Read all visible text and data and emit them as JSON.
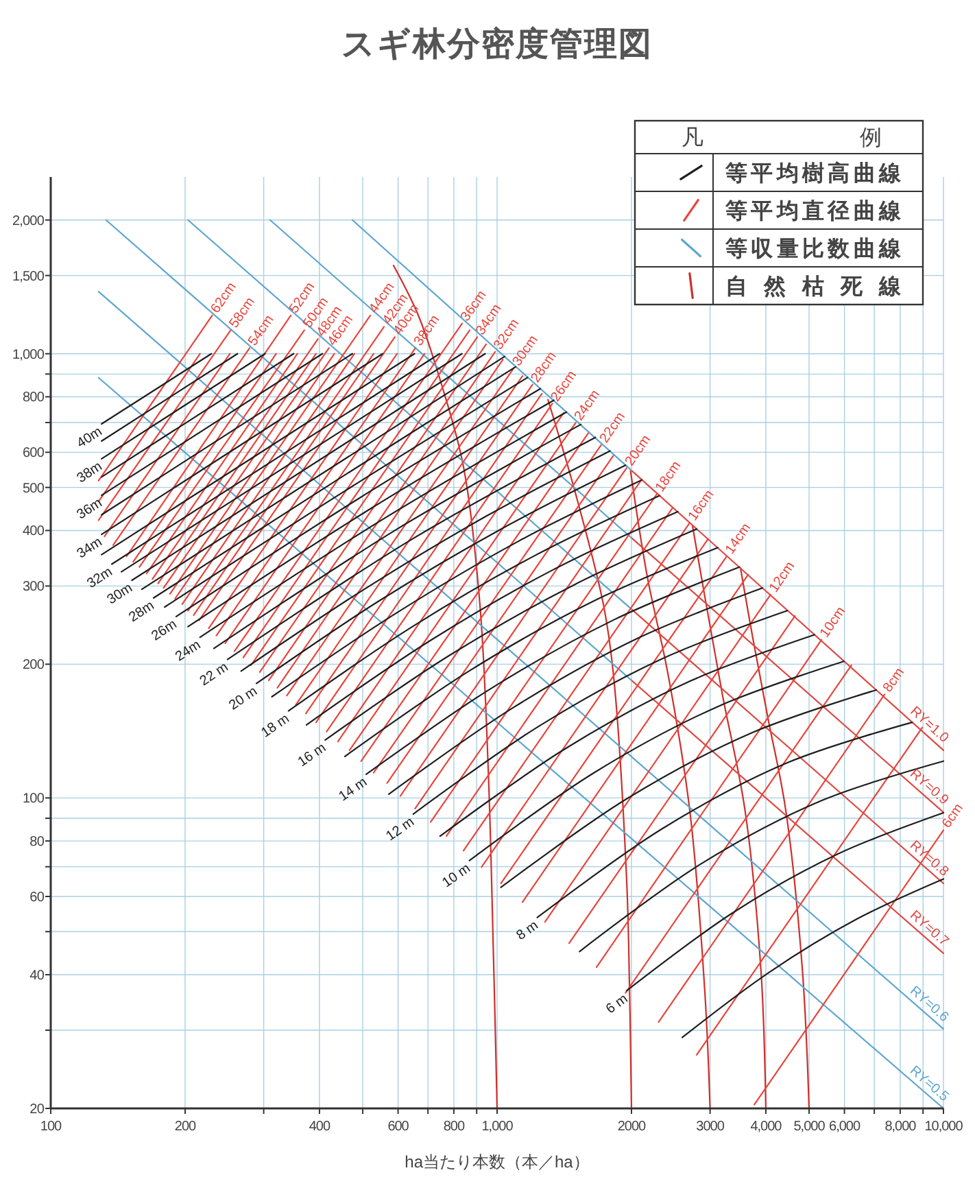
{
  "chart_data": {
    "type": "line",
    "title": "スギ林分密度管理図",
    "xlabel": "ha当たり本数（本／ha）",
    "legend_title": "凡例",
    "legend": "top right",
    "log": "xy",
    "grid": true,
    "xlim": [
      100,
      10000
    ],
    "ylim": [
      20,
      2500
    ],
    "xticks": [
      100,
      200,
      {
        "value": 300,
        "label": null
      },
      400,
      {
        "value": 500,
        "label": null
      },
      600,
      {
        "value": 700,
        "label": null
      },
      800,
      {
        "value": 900,
        "label": null
      },
      {
        "value": 1000,
        "label": "1,000"
      },
      2000,
      3000,
      {
        "value": 4000,
        "label": "4,000"
      },
      {
        "value": 5000,
        "label": "5,000"
      },
      {
        "value": 6000,
        "label": "6,000"
      },
      {
        "value": 7000,
        "label": null
      },
      {
        "value": 8000,
        "label": "8,000"
      },
      {
        "value": 9000,
        "label": null
      },
      {
        "value": 10000,
        "label": "10,000"
      }
    ],
    "yticks": [
      20,
      {
        "value": 30,
        "label": null
      },
      40,
      {
        "value": 50,
        "label": null
      },
      60,
      {
        "value": 70,
        "label": null
      },
      80,
      {
        "value": 90,
        "label": null
      },
      100,
      200,
      300,
      400,
      500,
      600,
      {
        "value": 700,
        "label": null
      },
      800,
      {
        "value": 900,
        "label": null
      },
      {
        "value": 1000,
        "label": "1,000"
      },
      {
        "value": 1500,
        "label": "1,500"
      },
      {
        "value": 2000,
        "label": "2,000"
      }
    ],
    "series": [
      {
        "name": "等平均樹高曲線",
        "color": "#1e1e1e",
        "x": [
          130,
          229
        ],
        "values": [
          695,
          1000
        ]
      },
      {
        "color": "#1e1e1e",
        "x": [
          130,
          262
        ],
        "values": [
          636,
          1000
        ]
      },
      {
        "color": "#1e1e1e",
        "x": [
          130,
          302
        ],
        "values": [
          580,
          1000
        ]
      },
      {
        "color": "#1e1e1e",
        "x": [
          130,
          350
        ],
        "values": [
          528,
          1000
        ]
      },
      {
        "color": "#1e1e1e",
        "x": [
          130,
          406
        ],
        "values": [
          480,
          1000
        ]
      },
      {
        "color": "#1e1e1e",
        "x": [
          130,
          474
        ],
        "values": [
          434,
          1000
        ]
      },
      {
        "color": "#1e1e1e",
        "x": [
          130,
          554
        ],
        "values": [
          392,
          1000
        ]
      },
      {
        "color": "#1e1e1e",
        "x": [
          130,
          653
        ],
        "values": [
          353,
          1000
        ]
      },
      {
        "color": "#1e1e1e",
        "x": [
          137,
          743
        ],
        "values": [
          336,
          1000
        ]
      },
      {
        "color": "#1e1e1e",
        "x": [
          144,
          834
        ],
        "values": [
          323,
          1000
        ]
      },
      {
        "color": "#1e1e1e",
        "x": [
          152,
          940
        ],
        "values": [
          309,
          1000
        ]
      },
      {
        "color": "#1e1e1e",
        "x": [
          160,
          1040
        ],
        "values": [
          295,
          986
        ]
      },
      {
        "color": "#1e1e1e",
        "x": [
          170,
          433,
          1100
        ],
        "values": [
          282,
          516,
          934
        ]
      },
      {
        "color": "#1e1e1e",
        "x": [
          180,
          459,
          1170
        ],
        "values": [
          269,
          493,
          884
        ]
      },
      {
        "color": "#1e1e1e",
        "x": [
          191,
          488,
          1250
        ],
        "values": [
          256,
          471,
          834
        ]
      },
      {
        "color": "#1e1e1e",
        "x": [
          203,
          521,
          1340
        ],
        "values": [
          243,
          448,
          786
        ]
      },
      {
        "color": "#1e1e1e",
        "x": [
          216,
          557,
          1430
        ],
        "values": [
          230,
          425,
          739
        ]
      },
      {
        "color": "#1e1e1e",
        "x": [
          232,
          597,
          1540
        ],
        "values": [
          217,
          403,
          693
        ]
      },
      {
        "color": "#1e1e1e",
        "x": [
          249,
          641,
          1660
        ],
        "values": [
          205,
          381,
          648
        ]
      },
      {
        "color": "#1e1e1e",
        "x": [
          267,
          504,
          950,
          1790
        ],
        "values": [
          193,
          295,
          432,
          604
        ]
      },
      {
        "color": "#1e1e1e",
        "x": [
          289,
          545,
          1030,
          1940
        ],
        "values": [
          181,
          278,
          405,
          561
        ]
      },
      {
        "color": "#1e1e1e",
        "x": [
          313,
          592,
          1120,
          2110
        ],
        "values": [
          169,
          260,
          379,
          520
        ]
      },
      {
        "color": "#1e1e1e",
        "x": [
          341,
          646,
          1220,
          2310
        ],
        "values": [
          157,
          243,
          352,
          479
        ]
      },
      {
        "color": "#1e1e1e",
        "x": [
          374,
          708,
          1340,
          2540
        ],
        "values": [
          146,
          226,
          327,
          441
        ]
      },
      {
        "color": "#1e1e1e",
        "x": [
          412,
          780,
          1480,
          2800
        ],
        "values": [
          135,
          209,
          301,
          403
        ]
      },
      {
        "color": "#1e1e1e",
        "x": [
          456,
          865,
          1640,
          3120
        ],
        "values": [
          124,
          193,
          277,
          366
        ]
      },
      {
        "color": "#1e1e1e",
        "x": [
          509,
          966,
          1830,
          3490
        ],
        "values": [
          113,
          176,
          252,
          331
        ]
      },
      {
        "color": "#1e1e1e",
        "x": [
          572,
          1090,
          2070,
          3930
        ],
        "values": [
          102,
          160,
          229,
          297
        ]
      },
      {
        "color": "#1e1e1e",
        "x": [
          649,
          1240,
          2350,
          4470
        ],
        "values": [
          92,
          145,
          206,
          264
        ]
      },
      {
        "color": "#1e1e1e",
        "x": [
          745,
          1420,
          2700,
          5140
        ],
        "values": [
          82,
          129,
          183,
          233
        ]
      },
      {
        "color": "#1e1e1e",
        "x": [
          867,
          1650,
          3140,
          5980
        ],
        "values": [
          72.3,
          114,
          161,
          203
        ]
      },
      {
        "color": "#1e1e1e",
        "x": [
          1020,
          1950,
          3710,
          7070
        ],
        "values": [
          62.9,
          99.5,
          140,
          175
        ]
      },
      {
        "color": "#1e1e1e",
        "x": [
          1230,
          2350,
          4470,
          8510
        ],
        "values": [
          53.8,
          85.4,
          120,
          148
        ]
      },
      {
        "color": "#1e1e1e",
        "x": [
          1530,
          2860,
          5340,
          10000
        ],
        "values": [
          45.1,
          71,
          98.7,
          121
        ]
      },
      {
        "color": "#1e1e1e",
        "x": [
          1950,
          3360,
          5800,
          10000
        ],
        "values": [
          36.8,
          55,
          74.8,
          92.6
        ]
      },
      {
        "color": "#1e1e1e",
        "x": [
          2600,
          4070,
          6380,
          10000
        ],
        "values": [
          28.9,
          40.5,
          53.3,
          65.7
        ]
      },
      {
        "name": "等平均直径曲線",
        "color": "#e8453c",
        "x": [
          128,
          230
        ],
        "values": [
          518,
          1220
        ]
      },
      {
        "color": "#e8453c",
        "x": [
          128,
          216
        ],
        "values": [
          465,
          1000
        ]
      },
      {
        "color": "#e8453c",
        "x": [
          128,
          253
        ],
        "values": [
          422,
          1130
        ]
      },
      {
        "color": "#e8453c",
        "x": [
          132,
          252
        ],
        "values": [
          388,
          1000
        ]
      },
      {
        "color": "#e8453c",
        "x": [
          138,
          279
        ],
        "values": [
          371,
          1030
        ]
      },
      {
        "color": "#e8453c",
        "x": [
          148,
          345
        ],
        "values": [
          350,
          1220
        ]
      },
      {
        "color": "#e8453c",
        "x": [
          153,
          320
        ],
        "values": [
          340,
          1000
        ]
      },
      {
        "color": "#e8453c",
        "x": [
          158,
          370
        ],
        "values": [
          331,
          1130
        ]
      },
      {
        "color": "#e8453c",
        "x": [
          164,
          357
        ],
        "values": [
          320,
          1000
        ]
      },
      {
        "color": "#e8453c",
        "x": [
          169,
          397
        ],
        "values": [
          311,
          1080
        ]
      },
      {
        "color": "#e8453c",
        "x": [
          174,
          393
        ],
        "values": [
          304,
          1000
        ]
      },
      {
        "color": "#e8453c",
        "x": [
          179,
          420
        ],
        "values": [
          297,
          1030
        ]
      },
      {
        "color": "#e8453c",
        "x": [
          185,
          432
        ],
        "values": [
          288,
          1000
        ]
      },
      {
        "color": "#e8453c",
        "x": [
          190,
          520
        ],
        "values": [
          281,
          1220
        ]
      },
      {
        "color": "#e8453c",
        "x": [
          197,
          479
        ],
        "values": [
          273,
          1000
        ]
      },
      {
        "color": "#e8453c",
        "x": [
          203,
          558
        ],
        "values": [
          264,
          1150
        ]
      },
      {
        "color": "#e8453c",
        "x": [
          209,
          529
        ],
        "values": [
          258,
          1000
        ]
      },
      {
        "color": "#e8453c",
        "x": [
          215,
          590
        ],
        "values": [
          251,
          1090
        ]
      },
      {
        "color": "#e8453c",
        "x": [
          226,
          597
        ],
        "values": [
          241,
          1000
        ]
      },
      {
        "color": "#e8453c",
        "x": [
          235,
          656
        ],
        "values": [
          232,
          1030
        ]
      },
      {
        "color": "#e8453c",
        "x": [
          246,
          688
        ],
        "values": [
          223,
          1000
        ]
      },
      {
        "color": "#e8453c",
        "x": [
          258,
          835
        ],
        "values": [
          214,
          1170
        ]
      },
      {
        "color": "#e8453c",
        "x": [
          270,
          868
        ],
        "values": [
          207,
          1130
        ]
      },
      {
        "color": "#e8453c",
        "x": [
          281,
          903
        ],
        "values": [
          199,
          1090
        ]
      },
      {
        "color": "#e8453c",
        "x": [
          294,
          945
        ],
        "values": [
          192,
          1050
        ]
      },
      {
        "color": "#e8453c",
        "x": [
          308,
          990
        ],
        "values": [
          184,
          1010
        ]
      },
      {
        "color": "#e8453c",
        "x": [
          322,
          1030
        ],
        "values": [
          177,
          970
        ]
      },
      {
        "color": "#e8453c",
        "x": [
          338,
          1090
        ],
        "values": [
          170,
          928
        ]
      },
      {
        "color": "#e8453c",
        "x": [
          354,
          1140
        ],
        "values": [
          162,
          891
        ]
      },
      {
        "color": "#e8453c",
        "x": [
          373,
          1200
        ],
        "values": [
          155,
          852
        ]
      },
      {
        "color": "#e8453c",
        "x": [
          393,
          1260
        ],
        "values": [
          148,
          813
        ]
      },
      {
        "color": "#e8453c",
        "x": [
          415,
          1330
        ],
        "values": [
          141,
          772
        ]
      },
      {
        "color": "#e8453c",
        "x": [
          440,
          1410
        ],
        "values": [
          134,
          736
        ]
      },
      {
        "color": "#e8453c",
        "x": [
          467,
          1500
        ],
        "values": [
          128,
          699
        ]
      },
      {
        "color": "#e8453c",
        "x": [
          496,
          1600
        ],
        "values": [
          121,
          662
        ]
      },
      {
        "color": "#e8453c",
        "x": [
          529,
          1710
        ],
        "values": [
          114,
          623
        ]
      },
      {
        "color": "#e8453c",
        "x": [
          567,
          1820
        ],
        "values": [
          108,
          589
        ]
      },
      {
        "color": "#e8453c",
        "x": [
          607,
          1950
        ],
        "values": [
          101,
          553
        ]
      },
      {
        "color": "#e8453c",
        "x": [
          655,
          2100
        ],
        "values": [
          94.6,
          518
        ]
      },
      {
        "color": "#e8453c",
        "x": [
          710,
          2280
        ],
        "values": [
          88.3,
          483
        ]
      },
      {
        "color": "#e8453c",
        "x": [
          770,
          2470
        ],
        "values": [
          82.1,
          449
        ]
      },
      {
        "color": "#e8453c",
        "x": [
          841,
          2700
        ],
        "values": [
          76.1,
          416
        ]
      },
      {
        "color": "#e8453c",
        "x": [
          923,
          2970
        ],
        "values": [
          69.9,
          383
        ]
      },
      {
        "color": "#e8453c",
        "x": [
          1020,
          3270
        ],
        "values": [
          64.2,
          350
        ]
      },
      {
        "color": "#e8453c",
        "x": [
          1140,
          3650
        ],
        "values": [
          58.3,
          318
        ]
      },
      {
        "color": "#e8453c",
        "x": [
          1280,
          4100
        ],
        "values": [
          52.6,
          287
        ]
      },
      {
        "color": "#e8453c",
        "x": [
          1450,
          4650
        ],
        "values": [
          47.1,
          257
        ]
      },
      {
        "color": "#e8453c",
        "x": [
          1670,
          5330
        ],
        "values": [
          41.6,
          227
        ]
      },
      {
        "color": "#e8453c",
        "x": [
          1940,
          6220
        ],
        "values": [
          36.4,
          199
        ]
      },
      {
        "color": "#e8453c",
        "x": [
          2300,
          7380
        ],
        "values": [
          31.3,
          171
        ]
      },
      {
        "color": "#e8453c",
        "x": [
          2800,
          8960
        ],
        "values": [
          26.4,
          144
        ]
      },
      {
        "color": "#e8453c",
        "x": [
          3770,
          10000
        ],
        "values": [
          20.4,
          84.6
        ]
      },
      {
        "name": "等収量比数曲線",
        "color": "#5ea6cf",
        "x": [
          474,
          2000
        ],
        "values": [
          2000,
          546
        ]
      },
      {
        "color": "#dd4a44",
        "x": [
          2000,
          10000
        ],
        "values": [
          546,
          128
        ]
      },
      {
        "color": "#5ea6cf",
        "x": [
          310,
          2000
        ],
        "values": [
          2000,
          385
        ]
      },
      {
        "color": "#dd4a44",
        "x": [
          2000,
          10000
        ],
        "values": [
          385,
          92.8
        ]
      },
      {
        "color": "#5ea6cf",
        "x": [
          203,
          2000
        ],
        "values": [
          2000,
          266
        ]
      },
      {
        "color": "#dd4a44",
        "x": [
          2000,
          10000
        ],
        "values": [
          266,
          64.2
        ]
      },
      {
        "color": "#5ea6cf",
        "x": [
          133,
          2000
        ],
        "values": [
          2000,
          184
        ]
      },
      {
        "color": "#dd4a44",
        "x": [
          2000,
          10000
        ],
        "values": [
          184,
          44.7
        ]
      },
      {
        "color": "#5ea6cf",
        "x": [
          128,
          10000
        ],
        "values": [
          1380,
          30.2
        ]
      },
      {
        "color": "#5ea6cf",
        "x": [
          128,
          10000
        ],
        "values": [
          883,
          20
        ]
      },
      {
        "name": "自然枯死線",
        "color": "#cf2f2a",
        "x": [
          1000,
          982,
          955,
          915,
          841,
          751,
          666,
          586
        ],
        "values": [
          20,
          43.1,
          117,
          273,
          556,
          852,
          1220,
          1580
        ]
      },
      {
        "color": "#cf2f2a",
        "x": [
          2000,
          1980,
          1950,
          1820,
          1730,
          1500,
          1300
        ],
        "values": [
          20,
          37.4,
          66,
          192,
          273,
          483,
          788
        ]
      },
      {
        "color": "#cf2f2a",
        "x": [
          3000,
          2920,
          2700,
          2410,
          2170,
          1990
        ],
        "values": [
          20,
          36.6,
          94.2,
          192,
          315,
          545
        ]
      },
      {
        "color": "#cf2f2a",
        "x": [
          4000,
          3900,
          3590,
          3200,
          2940,
          2740
        ],
        "values": [
          20,
          41,
          94.2,
          170,
          273,
          410
        ]
      },
      {
        "color": "#cf2f2a",
        "x": [
          5000,
          4830,
          4430,
          4040,
          3740,
          3510
        ],
        "values": [
          20,
          41,
          94.2,
          152,
          229,
          329
        ]
      }
    ],
    "annotations": [
      {
        "text": "40m",
        "x": 130,
        "y": 695
      },
      {
        "text": "38m",
        "x": 130,
        "y": 580
      },
      {
        "text": "36m",
        "x": 130,
        "y": 480
      },
      {
        "text": "34m",
        "x": 130,
        "y": 392
      },
      {
        "text": "32m",
        "x": 137,
        "y": 336
      },
      {
        "text": "30m",
        "x": 152,
        "y": 309
      },
      {
        "text": "28m",
        "x": 170,
        "y": 282
      },
      {
        "text": "26m",
        "x": 191,
        "y": 256
      },
      {
        "text": "24m",
        "x": 216,
        "y": 230
      },
      {
        "text": "22 m",
        "x": 249,
        "y": 205
      },
      {
        "text": "20 m",
        "x": 289,
        "y": 181
      },
      {
        "text": "18 m",
        "x": 341,
        "y": 157
      },
      {
        "text": "16 m",
        "x": 412,
        "y": 135
      },
      {
        "text": "14 m",
        "x": 509,
        "y": 113
      },
      {
        "text": "12 m",
        "x": 649,
        "y": 92
      },
      {
        "text": "10 m",
        "x": 867,
        "y": 72.3
      },
      {
        "text": "8 m",
        "x": 1230,
        "y": 53.8
      },
      {
        "text": "6 m",
        "x": 1950,
        "y": 36.8
      },
      {
        "text": "62cm",
        "x": 230,
        "y": 1220
      },
      {
        "text": "58cm",
        "x": 253,
        "y": 1130
      },
      {
        "text": "54cm",
        "x": 279,
        "y": 1030
      },
      {
        "text": "52cm",
        "x": 345,
        "y": 1220
      },
      {
        "text": "50cm",
        "x": 370,
        "y": 1130
      },
      {
        "text": "48cm",
        "x": 397,
        "y": 1080
      },
      {
        "text": "46cm",
        "x": 420,
        "y": 1030
      },
      {
        "text": "44cm",
        "x": 520,
        "y": 1220
      },
      {
        "text": "42cm",
        "x": 558,
        "y": 1150
      },
      {
        "text": "40cm",
        "x": 590,
        "y": 1090
      },
      {
        "text": "38cm",
        "x": 656,
        "y": 1030
      },
      {
        "text": "36cm",
        "x": 835,
        "y": 1170
      },
      {
        "text": "34cm",
        "x": 903,
        "y": 1090
      },
      {
        "text": "32cm",
        "x": 990,
        "y": 1010
      },
      {
        "text": "30cm",
        "x": 1090,
        "y": 928
      },
      {
        "text": "28cm",
        "x": 1200,
        "y": 852
      },
      {
        "text": "26cm",
        "x": 1330,
        "y": 772
      },
      {
        "text": "24cm",
        "x": 1500,
        "y": 699
      },
      {
        "text": "22cm",
        "x": 1710,
        "y": 623
      },
      {
        "text": "20cm",
        "x": 1950,
        "y": 553
      },
      {
        "text": "18cm",
        "x": 2280,
        "y": 483
      },
      {
        "text": "16cm",
        "x": 2700,
        "y": 416
      },
      {
        "text": "14cm",
        "x": 3270,
        "y": 350
      },
      {
        "text": "12cm",
        "x": 4100,
        "y": 287
      },
      {
        "text": "10cm",
        "x": 5330,
        "y": 227
      },
      {
        "text": "8cm",
        "x": 7380,
        "y": 171
      },
      {
        "text": "6cm",
        "x": 10000,
        "y": 84.6
      },
      {
        "text": "RY=1.0",
        "x": 9000,
        "y": 141
      },
      {
        "text": "RY=0.9",
        "x": 9000,
        "y": 102
      },
      {
        "text": "RY=0.8",
        "x": 9000,
        "y": 70.4
      },
      {
        "text": "RY=0.7",
        "x": 9000,
        "y": 49
      },
      {
        "text": "RY=0.6",
        "x": 9000,
        "y": 33.1
      },
      {
        "text": "RY=0.5",
        "x": 9000,
        "y": 21.9
      }
    ]
  }
}
